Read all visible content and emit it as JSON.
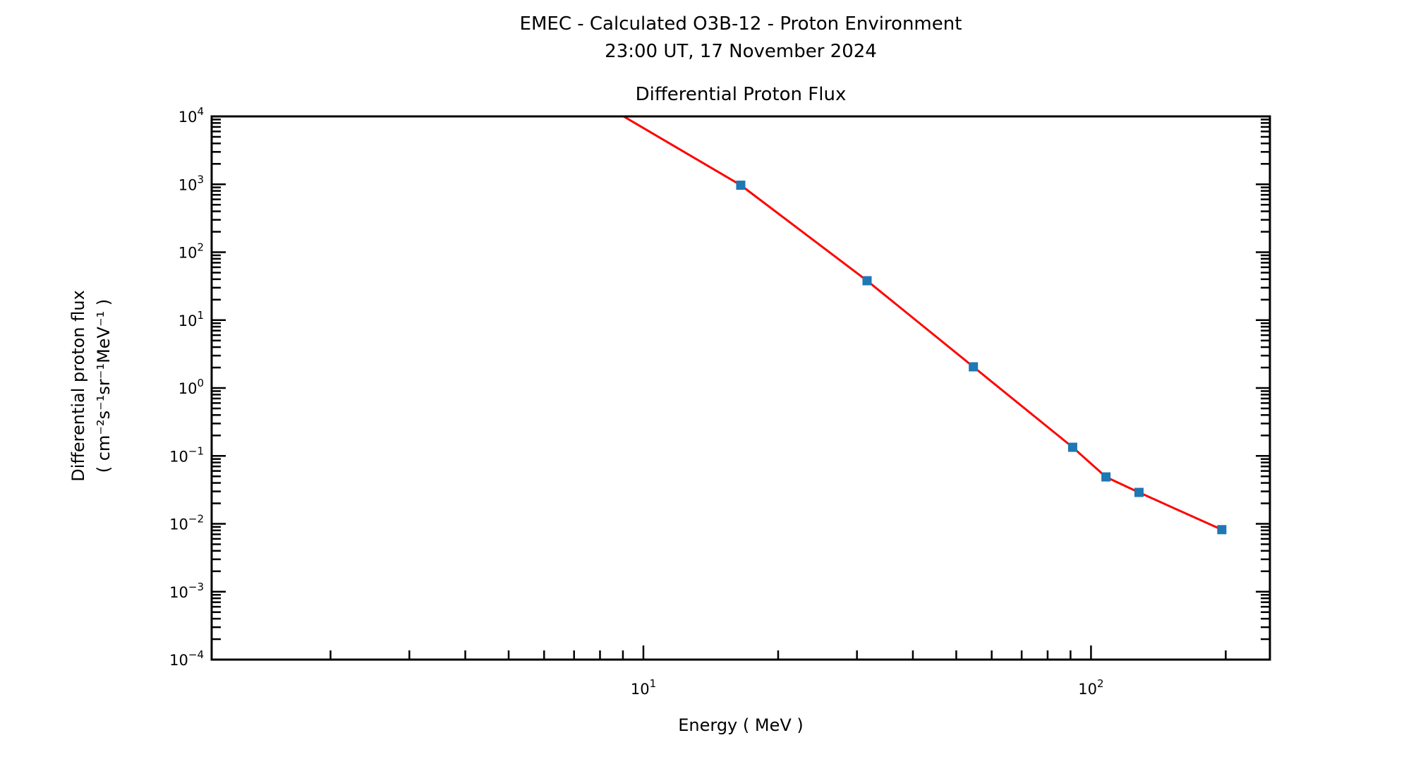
{
  "header": {
    "title_line1": "EMEC - Calculated O3B-12 - Proton Environment",
    "title_line2": "23:00 UT, 17 November 2024",
    "axes_title": "Differential Proton Flux"
  },
  "chart_data": {
    "type": "line",
    "title": "Differential Proton Flux",
    "xlabel": "Energy ( MeV )",
    "ylabel_line1": "Differential proton flux",
    "ylabel_line2": "( cm⁻²s⁻¹sr⁻¹MeV⁻¹ )",
    "x_scale": "log",
    "y_scale": "log",
    "xlim": [
      1.085,
      251
    ],
    "ylim": [
      0.0001,
      10000
    ],
    "x_tick_exponents": [
      1,
      2
    ],
    "y_tick_exponents": [
      4,
      3,
      2,
      1,
      0,
      -1,
      -2,
      -3,
      -4
    ],
    "grid": false,
    "legend": false,
    "series": [
      {
        "name": "differential-proton-flux",
        "line_color": "#ff0000",
        "line_width": 3,
        "marker": "square",
        "marker_color": "#1f77b4",
        "marker_size": 13,
        "points": [
          [
            16.5,
            970
          ],
          [
            31.6,
            38
          ],
          [
            54.6,
            2.05
          ],
          [
            91,
            0.134
          ],
          [
            108,
            0.049
          ],
          [
            128,
            0.029
          ],
          [
            196,
            0.0082
          ]
        ],
        "line_entry_offplot": [
          6.5,
          35700
        ]
      }
    ],
    "colors": {
      "background": "#ffffff",
      "spines": "#000000",
      "text": "#000000"
    }
  }
}
